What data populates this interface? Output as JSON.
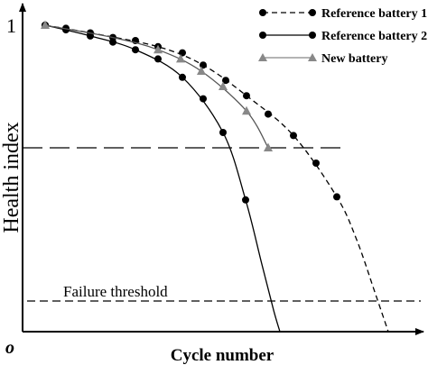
{
  "chart_data": {
    "type": "line",
    "title": "",
    "xlabel": "Cycle number",
    "ylabel": "Health index",
    "origin_label": "o",
    "y_tick_label": "1",
    "xlim": [
      0,
      430
    ],
    "ylim": [
      0,
      1.0
    ],
    "y_tick_value": 1.0,
    "grid": false,
    "legend_position": "top-right",
    "threshold_line": {
      "value": 0.6,
      "style": "long-dash"
    },
    "failure_threshold": {
      "value": 0.1,
      "label": "Failure threshold"
    },
    "series": [
      {
        "name": "Reference battery 1",
        "color": "#000000",
        "line_style": "dashed",
        "marker": "circle",
        "points": [
          [
            25,
            1.0
          ],
          [
            48,
            0.99
          ],
          [
            75,
            0.975
          ],
          [
            100,
            0.96
          ],
          [
            125,
            0.95
          ],
          [
            150,
            0.93
          ],
          [
            177,
            0.91
          ],
          [
            200,
            0.87
          ],
          [
            225,
            0.82
          ],
          [
            248,
            0.77
          ],
          [
            272,
            0.71
          ],
          [
            300,
            0.64
          ],
          [
            325,
            0.55
          ],
          [
            348,
            0.44
          ]
        ],
        "curve": [
          [
            25,
            1.0
          ],
          [
            75,
            0.975
          ],
          [
            150,
            0.93
          ],
          [
            200,
            0.87
          ],
          [
            248,
            0.77
          ],
          [
            300,
            0.64
          ],
          [
            348,
            0.44
          ],
          [
            370,
            0.3
          ],
          [
            390,
            0.13
          ],
          [
            405,
            0.0
          ]
        ]
      },
      {
        "name": "Reference battery 2",
        "color": "#000000",
        "line_style": "solid",
        "marker": "circle",
        "points": [
          [
            25,
            1.0
          ],
          [
            48,
            0.985
          ],
          [
            75,
            0.965
          ],
          [
            100,
            0.945
          ],
          [
            125,
            0.92
          ],
          [
            150,
            0.89
          ],
          [
            177,
            0.83
          ],
          [
            200,
            0.76
          ],
          [
            222,
            0.65
          ],
          [
            247,
            0.43
          ]
        ],
        "curve": [
          [
            25,
            1.0
          ],
          [
            75,
            0.965
          ],
          [
            125,
            0.92
          ],
          [
            177,
            0.83
          ],
          [
            222,
            0.65
          ],
          [
            247,
            0.43
          ],
          [
            265,
            0.22
          ],
          [
            278,
            0.07
          ],
          [
            285,
            0.0
          ]
        ]
      },
      {
        "name": "New battery",
        "color": "#888888",
        "line_style": "solid",
        "marker": "triangle",
        "points": [
          [
            25,
            1.0
          ],
          [
            150,
            0.92
          ],
          [
            175,
            0.89
          ],
          [
            198,
            0.85
          ],
          [
            222,
            0.8
          ],
          [
            248,
            0.72
          ],
          [
            272,
            0.6
          ]
        ],
        "curve": [
          [
            25,
            1.0
          ],
          [
            100,
            0.96
          ],
          [
            150,
            0.92
          ],
          [
            198,
            0.85
          ],
          [
            248,
            0.72
          ],
          [
            272,
            0.6
          ]
        ]
      }
    ]
  }
}
